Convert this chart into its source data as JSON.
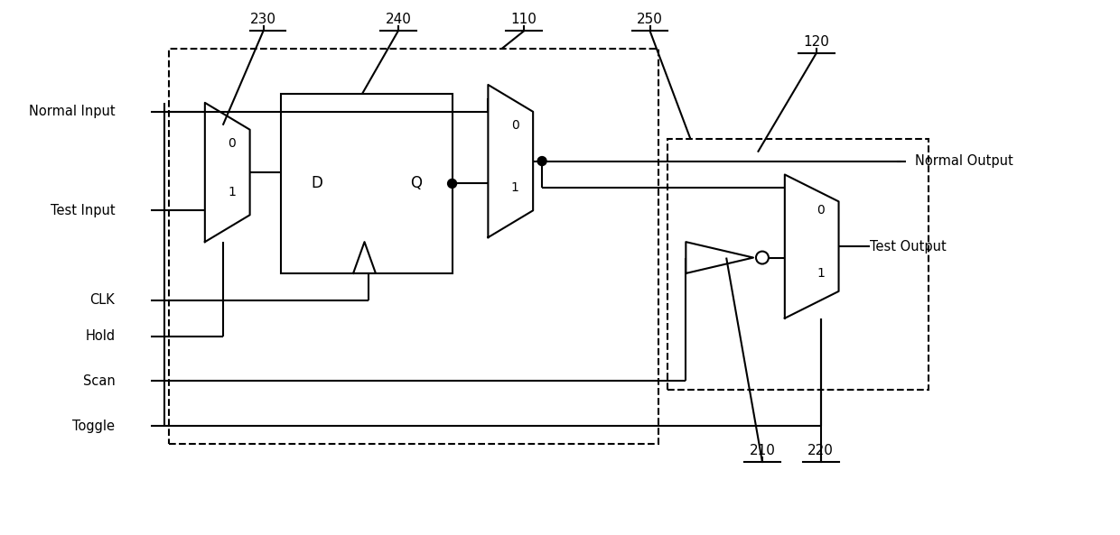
{
  "title": "",
  "bg_color": "#ffffff",
  "line_color": "#000000",
  "figsize": [
    12.4,
    5.93
  ],
  "dpi": 100,
  "labels": {
    "normal_input": "Normal Input",
    "test_input": "Test Input",
    "clk": "CLK",
    "hold": "Hold",
    "scan": "Scan",
    "toggle": "Toggle",
    "normal_output": "Normal Output",
    "test_output": "Test Output",
    "label_230": "230",
    "label_240": "240",
    "label_110": "110",
    "label_250": "250",
    "label_120": "120",
    "label_210": "210",
    "label_220": "220",
    "D": "D",
    "Q": "Q"
  }
}
